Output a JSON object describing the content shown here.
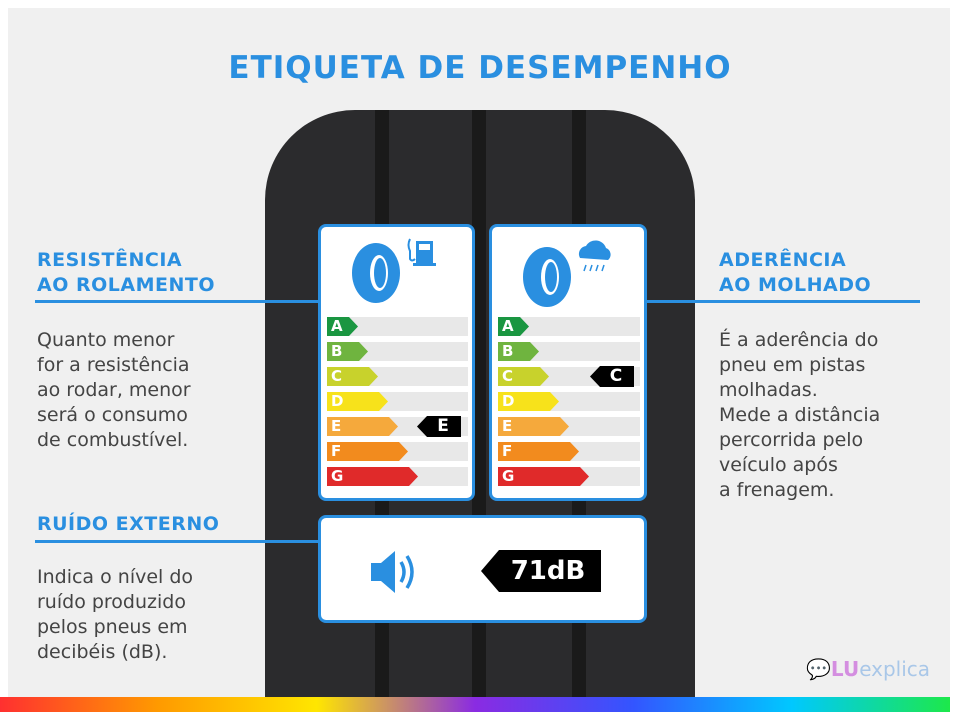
{
  "title": "ETIQUETA DE DESEMPENHO",
  "rolling": {
    "heading": [
      "RESISTÊNCIA",
      "AO ROLAMENTO"
    ],
    "text": [
      "Quanto menor",
      "for a resistência",
      "ao rodar, menor",
      "será o consumo",
      "de combustível."
    ],
    "rating": "E",
    "icon": "fuel-pump-icon"
  },
  "wet": {
    "heading": [
      "ADERÊNCIA",
      "AO MOLHADO"
    ],
    "text": [
      "É a aderência do",
      "pneu em pistas",
      "molhadas.",
      "Mede a distância",
      "percorrida pelo",
      "veículo após",
      "a frenagem."
    ],
    "rating": "C",
    "icon": "rain-cloud-icon"
  },
  "noise": {
    "heading": "RUÍDO EXTERNO",
    "text": [
      "Indica o nível do",
      "ruído produzido",
      "pelos pneus em",
      "decibéis (dB)."
    ],
    "value": "71dB",
    "icon": "speaker-icon"
  },
  "grades": [
    {
      "l": "A",
      "c": "#1a9641"
    },
    {
      "l": "B",
      "c": "#6fb43f"
    },
    {
      "l": "C",
      "c": "#c8d22c"
    },
    {
      "l": "D",
      "c": "#f7e21b"
    },
    {
      "l": "E",
      "c": "#f5a93c"
    },
    {
      "l": "F",
      "c": "#f28b1e"
    },
    {
      "l": "G",
      "c": "#e02a2a"
    }
  ],
  "logo": {
    "a": "LU",
    "b": "explica"
  },
  "accent": "#2a8fe0"
}
